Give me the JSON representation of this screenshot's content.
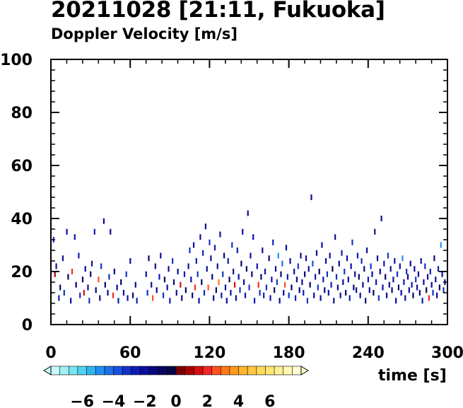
{
  "chart_data": {
    "type": "heatmap",
    "title": "20211028 [21:11, Fukuoka]",
    "subtitle": "Doppler Velocity [m/s]",
    "xlabel": "time [s]",
    "ylabel": "",
    "xlim": [
      0,
      300
    ],
    "ylim": [
      0,
      100
    ],
    "x_ticks": [
      0,
      60,
      120,
      180,
      240,
      300
    ],
    "y_ticks": [
      0,
      20,
      40,
      60,
      80,
      100
    ],
    "colorbar": {
      "ticks": [
        -6,
        -4,
        -2,
        0,
        2,
        4,
        6
      ],
      "tick_labels": [
        "−6",
        "−4",
        "−2",
        "0",
        "2",
        "4",
        "6"
      ],
      "range": [
        -8,
        8
      ],
      "colors": [
        "#c8fafa",
        "#a0f0f5",
        "#78e6f0",
        "#50d2f0",
        "#30b4f0",
        "#2090f0",
        "#1c70e8",
        "#1650dc",
        "#1232c8",
        "#0c1cb4",
        "#0a0e9c",
        "#08087e",
        "#060660",
        "#050545",
        "#780000",
        "#aa0000",
        "#d41010",
        "#f02828",
        "#ff5020",
        "#ff7818",
        "#ff9a1c",
        "#ffb42c",
        "#ffc840",
        "#ffda5a",
        "#ffe678",
        "#fff096",
        "#fff8b4",
        "#fffcd2"
      ]
    },
    "points": [
      [
        2,
        32,
        -3
      ],
      [
        3,
        19,
        1
      ],
      [
        4,
        22,
        -2
      ],
      [
        6,
        10,
        -2.5
      ],
      [
        7,
        14,
        -1.5
      ],
      [
        9,
        25,
        -2
      ],
      [
        10,
        12,
        -3
      ],
      [
        12,
        35,
        -2
      ],
      [
        13,
        18,
        -1
      ],
      [
        15,
        9,
        -2
      ],
      [
        16,
        20,
        2
      ],
      [
        18,
        33,
        -2
      ],
      [
        19,
        15,
        -1.5
      ],
      [
        21,
        26,
        -2.5
      ],
      [
        22,
        11,
        -3
      ],
      [
        24,
        17,
        -1
      ],
      [
        25,
        12,
        1.5
      ],
      [
        26,
        21,
        -2
      ],
      [
        28,
        14,
        -2
      ],
      [
        29,
        9,
        -3
      ],
      [
        30,
        19,
        -1.5
      ],
      [
        31,
        23,
        -2
      ],
      [
        33,
        35,
        -2.5
      ],
      [
        34,
        13,
        -1
      ],
      [
        36,
        17,
        2.5
      ],
      [
        37,
        10,
        -2
      ],
      [
        38,
        22,
        -3
      ],
      [
        40,
        39,
        -2
      ],
      [
        41,
        15,
        -1.5
      ],
      [
        43,
        12,
        -2
      ],
      [
        44,
        18,
        -3
      ],
      [
        45,
        35,
        -2
      ],
      [
        47,
        11,
        2
      ],
      [
        48,
        20,
        -1.5
      ],
      [
        50,
        14,
        -2
      ],
      [
        51,
        9,
        -2.5
      ],
      [
        53,
        16,
        -1
      ],
      [
        55,
        12,
        -2
      ],
      [
        57,
        19,
        -3
      ],
      [
        58,
        10,
        -2
      ],
      [
        60,
        24,
        -2
      ],
      [
        62,
        11,
        -1.5
      ],
      [
        64,
        15,
        -2
      ],
      [
        65,
        9,
        -2.5
      ],
      [
        72,
        19,
        -2
      ],
      [
        73,
        12,
        -3
      ],
      [
        74,
        25,
        -1
      ],
      [
        76,
        15,
        -2
      ],
      [
        77,
        10,
        2.5
      ],
      [
        79,
        22,
        -2
      ],
      [
        80,
        13,
        -1.5
      ],
      [
        82,
        18,
        -2.5
      ],
      [
        83,
        26,
        -2
      ],
      [
        85,
        11,
        -3
      ],
      [
        86,
        17,
        -1
      ],
      [
        88,
        14,
        -2
      ],
      [
        89,
        21,
        -2
      ],
      [
        90,
        9,
        -2.5
      ],
      [
        92,
        24,
        -3
      ],
      [
        93,
        16,
        -1.5
      ],
      [
        95,
        12,
        -2
      ],
      [
        96,
        20,
        -2
      ],
      [
        98,
        15,
        1.5
      ],
      [
        99,
        10,
        -2
      ],
      [
        101,
        19,
        -2.5
      ],
      [
        102,
        13,
        -1
      ],
      [
        104,
        22,
        -2
      ],
      [
        105,
        28,
        -3
      ],
      [
        106,
        17,
        -2
      ],
      [
        107,
        11,
        -1.5
      ],
      [
        108,
        30,
        -2
      ],
      [
        109,
        14,
        2
      ],
      [
        110,
        24,
        -2.5
      ],
      [
        111,
        19,
        -3
      ],
      [
        112,
        9,
        -2
      ],
      [
        113,
        33,
        -2
      ],
      [
        114,
        16,
        -1
      ],
      [
        115,
        27,
        -2.5
      ],
      [
        116,
        12,
        -3
      ],
      [
        117,
        37,
        -2
      ],
      [
        118,
        21,
        -2
      ],
      [
        119,
        14,
        2.5
      ],
      [
        120,
        31,
        -3
      ],
      [
        121,
        25,
        -2
      ],
      [
        122,
        18,
        -1.5
      ],
      [
        123,
        10,
        -2
      ],
      [
        124,
        29,
        -2.5
      ],
      [
        125,
        13,
        -1
      ],
      [
        126,
        22,
        -2
      ],
      [
        127,
        16,
        3
      ],
      [
        128,
        34,
        -2
      ],
      [
        129,
        11,
        -2.5
      ],
      [
        130,
        19,
        -3
      ],
      [
        131,
        26,
        -1.5
      ],
      [
        132,
        14,
        -2
      ],
      [
        133,
        9,
        -2
      ],
      [
        134,
        24,
        -2.5
      ],
      [
        135,
        17,
        -1
      ],
      [
        136,
        12,
        -2
      ],
      [
        137,
        30,
        -3
      ],
      [
        138,
        20,
        -2
      ],
      [
        139,
        15,
        1.5
      ],
      [
        140,
        10,
        -2
      ],
      [
        141,
        28,
        -2.5
      ],
      [
        142,
        18,
        -2
      ],
      [
        143,
        13,
        -3
      ],
      [
        144,
        23,
        -1
      ],
      [
        145,
        35,
        -2
      ],
      [
        146,
        16,
        -2
      ],
      [
        147,
        11,
        -2.5
      ],
      [
        148,
        21,
        -1.5
      ],
      [
        149,
        42,
        -2
      ],
      [
        150,
        14,
        -3
      ],
      [
        151,
        26,
        -2
      ],
      [
        152,
        19,
        -1.5
      ],
      [
        153,
        33,
        -2
      ],
      [
        154,
        9,
        -2.5
      ],
      [
        156,
        22,
        -2
      ],
      [
        157,
        15,
        2
      ],
      [
        158,
        12,
        -3
      ],
      [
        159,
        18,
        -1
      ],
      [
        160,
        28,
        -2
      ],
      [
        161,
        11,
        -2.5
      ],
      [
        162,
        20,
        -2
      ],
      [
        163,
        14,
        -3
      ],
      [
        165,
        25,
        -1.5
      ],
      [
        166,
        10,
        -2
      ],
      [
        167,
        17,
        -2
      ],
      [
        168,
        31,
        -2.5
      ],
      [
        169,
        13,
        -1
      ],
      [
        170,
        21,
        -2
      ],
      [
        171,
        16,
        -3
      ],
      [
        172,
        26,
        -5
      ],
      [
        173,
        9,
        -2
      ],
      [
        174,
        19,
        -1.5
      ],
      [
        175,
        23,
        -4.5
      ],
      [
        176,
        12,
        -2
      ],
      [
        177,
        15,
        2.5
      ],
      [
        178,
        29,
        -2
      ],
      [
        179,
        18,
        -2.5
      ],
      [
        180,
        11,
        -3
      ],
      [
        181,
        24,
        -2
      ],
      [
        182,
        14,
        -1
      ],
      [
        184,
        20,
        -2
      ],
      [
        185,
        10,
        -2.5
      ],
      [
        186,
        17,
        -2
      ],
      [
        187,
        22,
        -3
      ],
      [
        188,
        13,
        -1.5
      ],
      [
        189,
        26,
        -2
      ],
      [
        190,
        16,
        -2
      ],
      [
        191,
        12,
        -2.5
      ],
      [
        192,
        19,
        -1
      ],
      [
        193,
        25,
        -2
      ],
      [
        194,
        9,
        -3
      ],
      [
        195,
        21,
        -2
      ],
      [
        196,
        15,
        -1.5
      ],
      [
        197,
        48,
        -2
      ],
      [
        198,
        23,
        -4
      ],
      [
        199,
        11,
        -2
      ],
      [
        200,
        18,
        -2.5
      ],
      [
        201,
        27,
        -2
      ],
      [
        202,
        14,
        -3
      ],
      [
        203,
        20,
        -1
      ],
      [
        204,
        10,
        -2
      ],
      [
        205,
        30,
        -2
      ],
      [
        206,
        17,
        -2.5
      ],
      [
        207,
        13,
        -1.5
      ],
      [
        208,
        24,
        -2
      ],
      [
        209,
        19,
        -3
      ],
      [
        210,
        12,
        -2
      ],
      [
        211,
        26,
        -2
      ],
      [
        212,
        15,
        -2.5
      ],
      [
        213,
        21,
        -1
      ],
      [
        214,
        9,
        -2
      ],
      [
        215,
        33,
        -2
      ],
      [
        216,
        18,
        -3
      ],
      [
        217,
        14,
        -2
      ],
      [
        218,
        23,
        -1.5
      ],
      [
        219,
        11,
        -2
      ],
      [
        220,
        27,
        -2.5
      ],
      [
        221,
        16,
        -2
      ],
      [
        222,
        20,
        -3
      ],
      [
        223,
        12,
        -1
      ],
      [
        224,
        25,
        -2
      ],
      [
        225,
        17,
        -2
      ],
      [
        226,
        10,
        -2.5
      ],
      [
        227,
        22,
        -2
      ],
      [
        228,
        31,
        -3
      ],
      [
        229,
        14,
        -1.5
      ],
      [
        230,
        19,
        -2
      ],
      [
        231,
        13,
        -2
      ],
      [
        232,
        26,
        -2.5
      ],
      [
        233,
        18,
        -1
      ],
      [
        234,
        11,
        -2
      ],
      [
        235,
        24,
        -3
      ],
      [
        236,
        15,
        -2
      ],
      [
        237,
        21,
        -2
      ],
      [
        238,
        9,
        -1.5
      ],
      [
        239,
        28,
        -2
      ],
      [
        240,
        17,
        -2.5
      ],
      [
        241,
        13,
        -2
      ],
      [
        242,
        22,
        -3
      ],
      [
        243,
        19,
        -2
      ],
      [
        244,
        12,
        -1
      ],
      [
        245,
        35,
        -2
      ],
      [
        246,
        16,
        -2.5
      ],
      [
        247,
        25,
        -2
      ],
      [
        248,
        10,
        -3
      ],
      [
        249,
        20,
        -1.5
      ],
      [
        250,
        40,
        -2
      ],
      [
        251,
        14,
        -2
      ],
      [
        252,
        23,
        -2.5
      ],
      [
        253,
        18,
        -1
      ],
      [
        254,
        11,
        -2
      ],
      [
        255,
        26,
        -3
      ],
      [
        256,
        15,
        -2
      ],
      [
        257,
        21,
        -2
      ],
      [
        258,
        13,
        -1.5
      ],
      [
        259,
        17,
        -2
      ],
      [
        260,
        24,
        -2.5
      ],
      [
        261,
        9,
        -2
      ],
      [
        262,
        19,
        -3
      ],
      [
        263,
        14,
        -1
      ],
      [
        264,
        22,
        -2
      ],
      [
        265,
        12,
        -2
      ],
      [
        266,
        25,
        -5
      ],
      [
        267,
        16,
        -2.5
      ],
      [
        268,
        10,
        -2
      ],
      [
        269,
        20,
        -3
      ],
      [
        270,
        18,
        -1.5
      ],
      [
        271,
        13,
        -2
      ],
      [
        272,
        23,
        -2
      ],
      [
        273,
        15,
        -2.5
      ],
      [
        274,
        11,
        -1
      ],
      [
        275,
        21,
        -2
      ],
      [
        276,
        17,
        -3
      ],
      [
        277,
        14,
        -2
      ],
      [
        278,
        19,
        -2
      ],
      [
        279,
        12,
        -1.5
      ],
      [
        280,
        24,
        -2
      ],
      [
        281,
        9,
        -2.5
      ],
      [
        282,
        16,
        -2
      ],
      [
        283,
        22,
        -3
      ],
      [
        284,
        13,
        -1
      ],
      [
        285,
        18,
        -2
      ],
      [
        286,
        10,
        2
      ],
      [
        287,
        20,
        -2.5
      ],
      [
        288,
        15,
        -2
      ],
      [
        289,
        12,
        -3
      ],
      [
        290,
        25,
        -1.5
      ],
      [
        291,
        17,
        -2
      ],
      [
        292,
        11,
        -2
      ],
      [
        293,
        21,
        -2.5
      ],
      [
        294,
        14,
        -1
      ],
      [
        295,
        30,
        -5
      ],
      [
        296,
        19,
        -2
      ],
      [
        297,
        13,
        -3
      ],
      [
        298,
        16,
        -2
      ]
    ],
    "grid": false,
    "legend": "colorbar below plot"
  }
}
